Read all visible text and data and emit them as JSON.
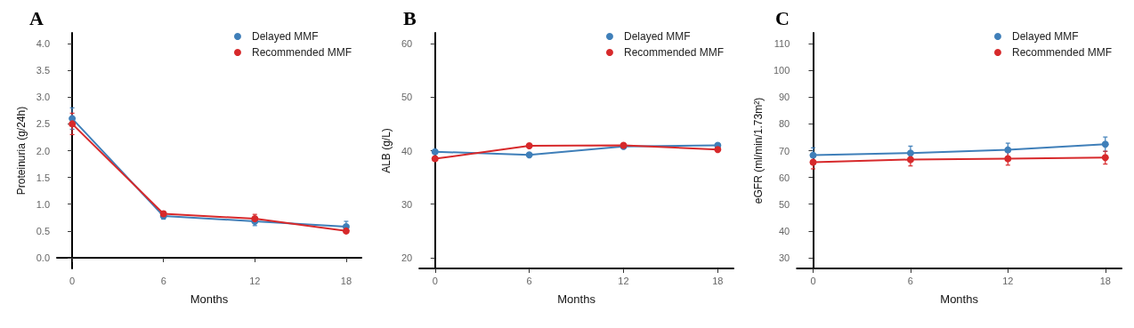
{
  "chart_data": [
    {
      "type": "line",
      "title": "A",
      "xlabel": "Months",
      "ylabel": "Proteinuria (g/24h)",
      "x": [
        0,
        6,
        12,
        18
      ],
      "xlim": [
        -1,
        19
      ],
      "xticks": [
        0,
        6,
        12,
        18
      ],
      "ylim": [
        -0.2,
        4.2
      ],
      "yticks": [
        {
          "value": 0,
          "label": "0.0"
        },
        {
          "value": 0.5,
          "label": "0.5"
        },
        {
          "value": 1,
          "label": "1.0"
        },
        {
          "value": 1.5,
          "label": "1.5"
        },
        {
          "value": 2,
          "label": "2.0"
        },
        {
          "value": 2.5,
          "label": "2.5"
        },
        {
          "value": 3,
          "label": "3.0"
        },
        {
          "value": 3.5,
          "label": "3.5"
        },
        {
          "value": 4,
          "label": "4.0"
        }
      ],
      "grid": false,
      "legend": "top right",
      "marker": "circle",
      "line_style": "solid",
      "series": [
        {
          "name": "Delayed MMF",
          "color": "#3f7fb9",
          "values": [
            2.6,
            0.78,
            0.68,
            0.58
          ],
          "errors": [
            0.2,
            0.06,
            0.08,
            0.1
          ]
        },
        {
          "name": "Recommended MMF",
          "color": "#d7292b",
          "values": [
            2.5,
            0.82,
            0.73,
            0.5
          ],
          "errors": [
            0.2,
            0.05,
            0.08,
            0.04
          ]
        }
      ]
    },
    {
      "type": "line",
      "title": "B",
      "xlabel": "Months",
      "ylabel": "ALB (g/L)",
      "x": [
        0,
        6,
        12,
        18
      ],
      "xlim": [
        -1,
        19
      ],
      "xticks": [
        0,
        6,
        12,
        18
      ],
      "ylim": [
        18,
        62
      ],
      "yticks": [
        20,
        30,
        40,
        50,
        60
      ],
      "grid": false,
      "legend": "top right",
      "marker": "circle",
      "line_style": "solid",
      "series": [
        {
          "name": "Delayed MMF",
          "color": "#3f7fb9",
          "values": [
            39.8,
            39.2,
            40.8,
            41.0
          ]
        },
        {
          "name": "Recommended MMF",
          "color": "#d7292b",
          "values": [
            38.5,
            40.9,
            41.0,
            40.2
          ]
        }
      ]
    },
    {
      "type": "line",
      "title": "C",
      "xlabel": "Months",
      "ylabel": "eGFR (ml/min/1.73m²)",
      "x": [
        0,
        6,
        12,
        18
      ],
      "xlim": [
        -1,
        19
      ],
      "xticks": [
        0,
        6,
        12,
        18
      ],
      "ylim": [
        26,
        114
      ],
      "yticks": [
        30,
        40,
        50,
        60,
        70,
        80,
        90,
        100,
        110
      ],
      "grid": false,
      "legend": "top right",
      "marker": "circle",
      "line_style": "solid",
      "series": [
        {
          "name": "Delayed MMF",
          "color": "#3f7fb9",
          "values": [
            68.3,
            69.1,
            70.3,
            72.4
          ],
          "errors": [
            2.8,
            2.6,
            2.5,
            2.7
          ]
        },
        {
          "name": "Recommended MMF",
          "color": "#d7292b",
          "values": [
            65.7,
            66.7,
            67.0,
            67.4
          ],
          "errors": [
            2.5,
            2.4,
            2.4,
            2.4
          ]
        }
      ]
    }
  ]
}
